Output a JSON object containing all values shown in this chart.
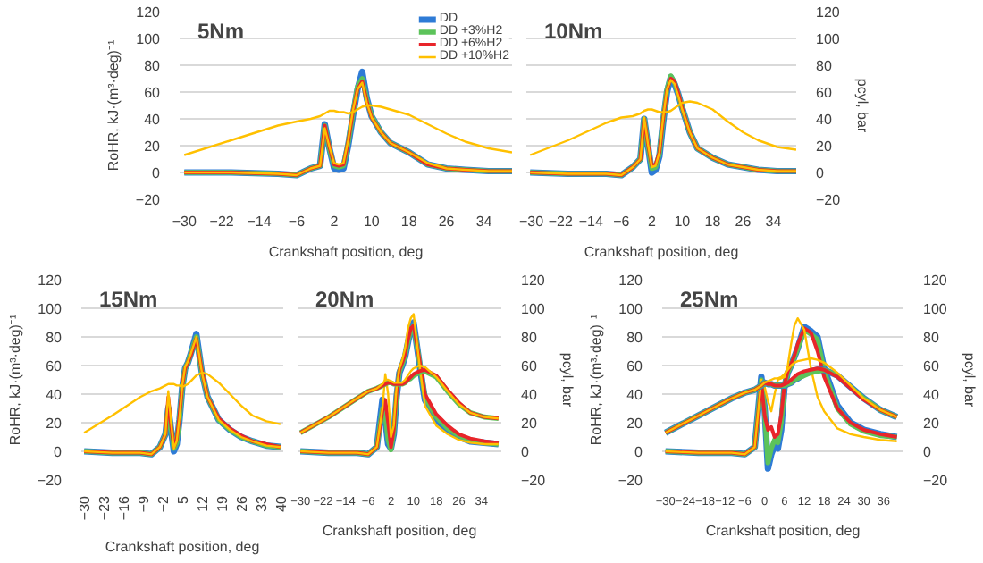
{
  "chart_data": [
    {
      "type": "line",
      "title": "5Nm",
      "xlabel": "Crankshaft position, deg",
      "ylabel": "RoHR, kJ·(m³·deg)⁻¹",
      "x": [
        -30,
        -20,
        -10,
        -6,
        -3,
        -1,
        0,
        1,
        2,
        3,
        4,
        5,
        6,
        7,
        8,
        9,
        10,
        12,
        14,
        18,
        22,
        26,
        30,
        35,
        40
      ],
      "xlim": [
        -31,
        40
      ],
      "xticks": [
        -30,
        -22,
        -14,
        -6,
        2,
        10,
        18,
        26,
        34
      ],
      "ylim": [
        -20,
        120
      ],
      "yticks": [
        -20,
        0,
        20,
        40,
        60,
        80,
        100,
        120
      ],
      "grid": "y",
      "legend": "top right",
      "series": [
        {
          "name": "DD",
          "color": "#2e7bd6",
          "values": [
            0,
            0,
            -1,
            -2,
            3,
            5,
            36,
            18,
            3,
            2,
            3,
            20,
            42,
            62,
            75,
            55,
            42,
            30,
            22,
            15,
            6,
            3,
            2,
            1,
            1
          ]
        },
        {
          "name": "DD +3%H2",
          "color": "#5cc35a",
          "values": [
            0,
            0,
            -1,
            -2,
            3,
            5,
            35,
            18,
            5,
            4,
            5,
            22,
            44,
            64,
            70,
            54,
            42,
            30,
            22,
            15,
            6,
            3,
            2,
            1,
            1
          ]
        },
        {
          "name": "DD +6%H2",
          "color": "#e8252a",
          "values": [
            0,
            0,
            -1,
            -2,
            3,
            5,
            35,
            19,
            6,
            5,
            6,
            23,
            45,
            62,
            68,
            53,
            41,
            30,
            22,
            15,
            6,
            3,
            2,
            1,
            1
          ]
        },
        {
          "name": "DD +10%H2",
          "color": "#ffc000",
          "values": [
            0,
            0,
            -1,
            -2,
            3,
            5,
            33,
            19,
            7,
            6,
            7,
            24,
            46,
            62,
            67,
            52,
            41,
            30,
            22,
            15,
            7,
            3,
            2,
            1,
            1
          ]
        },
        {
          "color": "#ffc000",
          "values": [
            13,
            24,
            35,
            38,
            40,
            42,
            44,
            46,
            46,
            45,
            45,
            44,
            45,
            47,
            49,
            50,
            50,
            49,
            47,
            43,
            36,
            29,
            23,
            18,
            15
          ]
        }
      ]
    },
    {
      "type": "line",
      "title": "10Nm",
      "xlabel": "Crankshaft position, deg",
      "y2label": "pcyl, bar",
      "x": [
        -30,
        -20,
        -10,
        -6,
        -3,
        -1,
        0,
        1,
        2,
        3,
        4,
        5,
        6,
        7,
        8,
        9,
        10,
        12,
        14,
        18,
        22,
        26,
        30,
        35,
        40
      ],
      "xlim": [
        -31,
        40
      ],
      "xticks": [
        -30,
        -22,
        -14,
        -6,
        2,
        10,
        18,
        26,
        34
      ],
      "y2lim": [
        -20,
        120
      ],
      "y2ticks": [
        -20,
        0,
        20,
        40,
        60,
        80,
        100,
        120
      ],
      "grid": "y",
      "series": [
        {
          "color": "#2e7bd6",
          "axis": "y2",
          "values": [
            0,
            -1,
            -1,
            -2,
            4,
            10,
            40,
            20,
            0,
            2,
            12,
            38,
            60,
            71,
            66,
            58,
            48,
            30,
            18,
            11,
            6,
            4,
            2,
            1,
            1
          ]
        },
        {
          "color": "#5cc35a",
          "axis": "y2",
          "values": [
            0,
            -1,
            -1,
            -2,
            4,
            10,
            40,
            20,
            3,
            4,
            14,
            40,
            62,
            72,
            67,
            58,
            48,
            30,
            18,
            11,
            6,
            4,
            2,
            1,
            1
          ]
        },
        {
          "color": "#e8252a",
          "axis": "y2",
          "values": [
            0,
            -1,
            -1,
            -2,
            4,
            10,
            40,
            21,
            5,
            6,
            15,
            40,
            61,
            70,
            68,
            59,
            48,
            30,
            18,
            11,
            6,
            4,
            2,
            1,
            1
          ]
        },
        {
          "color": "#ffc000",
          "axis": "y2",
          "values": [
            0,
            -1,
            -1,
            -2,
            4,
            10,
            41,
            21,
            4,
            5,
            15,
            41,
            62,
            69,
            66,
            57,
            47,
            30,
            18,
            11,
            6,
            4,
            2,
            1,
            1
          ]
        },
        {
          "color": "#ffc000",
          "axis": "y2",
          "values": [
            13,
            24,
            37,
            41,
            42,
            44,
            46,
            47,
            47,
            46,
            45,
            45,
            45,
            46,
            48,
            50,
            52,
            53,
            52,
            47,
            38,
            30,
            24,
            19,
            17
          ]
        }
      ]
    },
    {
      "type": "line",
      "title": "15Nm",
      "xlabel": "Crankshaft position, deg",
      "ylabel": "RoHR, kJ·(m³·deg)⁻¹",
      "x": [
        -30,
        -20,
        -10,
        -6,
        -3,
        -1,
        0,
        1,
        2,
        3,
        4,
        5,
        6,
        7,
        8,
        9,
        10,
        12,
        14,
        18,
        22,
        26,
        30,
        35,
        40
      ],
      "xlim": [
        -31,
        41
      ],
      "xticks": [
        -30,
        -23,
        -16,
        -9,
        -2,
        5,
        12,
        19,
        26,
        33,
        40
      ],
      "ylim": [
        -20,
        120
      ],
      "yticks": [
        -20,
        0,
        20,
        40,
        60,
        80,
        100,
        120
      ],
      "grid": "y",
      "series": [
        {
          "color": "#2e7bd6",
          "values": [
            0,
            -1,
            -1,
            -2,
            3,
            12,
            30,
            15,
            0,
            5,
            22,
            45,
            58,
            62,
            68,
            75,
            82,
            55,
            38,
            22,
            15,
            10,
            7,
            4,
            3
          ]
        },
        {
          "color": "#5cc35a",
          "values": [
            0,
            -1,
            -1,
            -2,
            3,
            12,
            32,
            16,
            2,
            6,
            23,
            45,
            58,
            62,
            68,
            74,
            80,
            55,
            38,
            22,
            15,
            10,
            7,
            4,
            3
          ]
        },
        {
          "color": "#e8252a",
          "values": [
            0,
            -1,
            -1,
            -2,
            3,
            12,
            38,
            18,
            3,
            8,
            25,
            46,
            58,
            62,
            67,
            73,
            79,
            56,
            38,
            23,
            16,
            11,
            7,
            5,
            3
          ]
        },
        {
          "color": "#ffc000",
          "values": [
            0,
            -1,
            -1,
            -2,
            3,
            12,
            42,
            20,
            2,
            7,
            24,
            46,
            59,
            63,
            68,
            74,
            80,
            55,
            38,
            22,
            15,
            10,
            7,
            4,
            3
          ]
        },
        {
          "color": "#ffc000",
          "values": [
            13,
            25,
            38,
            42,
            44,
            46,
            47,
            47,
            47,
            46,
            46,
            45,
            46,
            47,
            49,
            51,
            53,
            55,
            54,
            48,
            40,
            32,
            25,
            21,
            19
          ]
        }
      ]
    },
    {
      "type": "line",
      "title": "20Nm",
      "xlabel": "Crankshaft position, deg",
      "y2label": "pcyl, bar",
      "x": [
        -30,
        -20,
        -10,
        -6,
        -3,
        -1,
        0,
        1,
        2,
        3,
        4,
        5,
        6,
        7,
        8,
        9,
        10,
        12,
        14,
        18,
        22,
        26,
        30,
        35,
        40
      ],
      "xlim": [
        -31,
        41
      ],
      "xticks": [
        -30,
        -22,
        -14,
        -6,
        2,
        10,
        18,
        26,
        34
      ],
      "y2lim": [
        -20,
        120
      ],
      "y2ticks": [
        -20,
        0,
        20,
        40,
        60,
        80,
        100,
        120
      ],
      "grid": "y",
      "series": [
        {
          "color": "#2e7bd6",
          "axis": "y2",
          "values": [
            0,
            -1,
            -1,
            -2,
            3,
            36,
            22,
            5,
            2,
            12,
            38,
            55,
            60,
            66,
            76,
            86,
            90,
            62,
            36,
            22,
            15,
            10,
            7,
            6,
            5
          ]
        },
        {
          "color": "#5cc35a",
          "axis": "y2",
          "values": [
            0,
            -1,
            -1,
            -2,
            3,
            30,
            25,
            8,
            1,
            14,
            40,
            56,
            61,
            67,
            77,
            85,
            88,
            64,
            38,
            24,
            16,
            11,
            8,
            6,
            5
          ]
        },
        {
          "color": "#e8252a",
          "axis": "y2",
          "values": [
            0,
            -1,
            -1,
            -2,
            3,
            28,
            36,
            20,
            3,
            15,
            42,
            57,
            62,
            68,
            78,
            86,
            88,
            65,
            40,
            26,
            18,
            12,
            9,
            7,
            6
          ]
        },
        {
          "color": "#ffc000",
          "axis": "y2",
          "values": [
            0,
            -1,
            -1,
            -2,
            3,
            30,
            54,
            40,
            10,
            18,
            45,
            58,
            64,
            72,
            86,
            93,
            96,
            62,
            32,
            18,
            12,
            8,
            6,
            5,
            5
          ]
        },
        {
          "color": "#5cc35a",
          "axis": "y2",
          "values": [
            13,
            24,
            37,
            42,
            44,
            46,
            47,
            48,
            48,
            47,
            47,
            47,
            47,
            48,
            50,
            51,
            53,
            55,
            56,
            52,
            42,
            33,
            27,
            24,
            23
          ]
        },
        {
          "color": "#e8252a",
          "axis": "y2",
          "values": [
            13,
            24,
            37,
            42,
            44,
            46,
            47,
            48,
            48,
            47,
            47,
            47,
            47,
            48,
            50,
            52,
            54,
            56,
            57,
            53,
            43,
            34,
            27,
            24,
            23
          ]
        },
        {
          "color": "#ffc000",
          "axis": "y2",
          "values": [
            13,
            24,
            37,
            42,
            44,
            47,
            50,
            50,
            49,
            48,
            48,
            48,
            48,
            50,
            53,
            56,
            58,
            60,
            59,
            52,
            42,
            33,
            27,
            24,
            23
          ]
        }
      ]
    },
    {
      "type": "line",
      "title": "25Nm",
      "xlabel": "Crankshaft position, deg",
      "ylabel": "RoHR, kJ·(m³·deg)⁻¹",
      "y2label": "pcyl, bar",
      "x": [
        -30,
        -20,
        -10,
        -6,
        -3,
        -1,
        0,
        1,
        2,
        3,
        4,
        5,
        6,
        7,
        8,
        9,
        10,
        12,
        14,
        16,
        18,
        22,
        26,
        30,
        35,
        40
      ],
      "xlim": [
        -31,
        42
      ],
      "xticks": [
        -30,
        -24,
        -18,
        -12,
        -6,
        0,
        6,
        12,
        18,
        24,
        30,
        36
      ],
      "ylim": [
        -20,
        120
      ],
      "yticks": [
        -20,
        0,
        20,
        40,
        60,
        80,
        100,
        120
      ],
      "y2lim": [
        -20,
        120
      ],
      "y2ticks": [
        -20,
        0,
        20,
        40,
        60,
        80,
        100,
        120
      ],
      "grid": "y",
      "series": [
        {
          "color": "#2e7bd6",
          "values": [
            0,
            -1,
            -1,
            -2,
            3,
            52,
            30,
            -12,
            -2,
            4,
            2,
            15,
            45,
            55,
            60,
            66,
            72,
            87,
            84,
            80,
            58,
            32,
            20,
            15,
            12,
            10
          ]
        },
        {
          "color": "#5cc35a",
          "values": [
            0,
            -1,
            -1,
            -2,
            3,
            50,
            28,
            -8,
            2,
            8,
            6,
            20,
            46,
            55,
            60,
            66,
            72,
            85,
            82,
            78,
            56,
            30,
            19,
            14,
            11,
            10
          ]
        },
        {
          "color": "#e8252a",
          "values": [
            0,
            -1,
            -1,
            -2,
            3,
            48,
            25,
            15,
            17,
            10,
            12,
            25,
            47,
            56,
            61,
            67,
            75,
            86,
            83,
            70,
            52,
            30,
            20,
            15,
            12,
            10
          ]
        },
        {
          "color": "#ffc000",
          "values": [
            0,
            -1,
            -1,
            -2,
            3,
            50,
            45,
            35,
            28,
            40,
            50,
            51,
            52,
            60,
            75,
            88,
            93,
            85,
            58,
            38,
            28,
            16,
            12,
            10,
            8,
            7
          ]
        },
        {
          "color": "#2e7bd6",
          "axis": "y2",
          "values": [
            13,
            25,
            37,
            41,
            43,
            46,
            48,
            47,
            47,
            46,
            46,
            46,
            46,
            47,
            48,
            50,
            51,
            54,
            56,
            57,
            57,
            53,
            45,
            37,
            29,
            24
          ]
        },
        {
          "color": "#5cc35a",
          "axis": "y2",
          "values": [
            13,
            25,
            37,
            41,
            43,
            46,
            48,
            47,
            47,
            46,
            46,
            46,
            46,
            47,
            48,
            50,
            51,
            53,
            55,
            56,
            57,
            53,
            45,
            37,
            29,
            24
          ]
        },
        {
          "color": "#e8252a",
          "axis": "y2",
          "values": [
            13,
            25,
            37,
            41,
            43,
            46,
            48,
            47,
            47,
            46,
            46,
            46,
            47,
            48,
            50,
            52,
            54,
            56,
            57,
            58,
            57,
            52,
            44,
            36,
            29,
            24
          ]
        },
        {
          "color": "#ffc000",
          "axis": "y2",
          "values": [
            13,
            25,
            37,
            41,
            43,
            46,
            48,
            49,
            50,
            51,
            51,
            52,
            54,
            57,
            60,
            62,
            63,
            64,
            65,
            64,
            62,
            55,
            46,
            37,
            29,
            24
          ]
        }
      ]
    }
  ]
}
